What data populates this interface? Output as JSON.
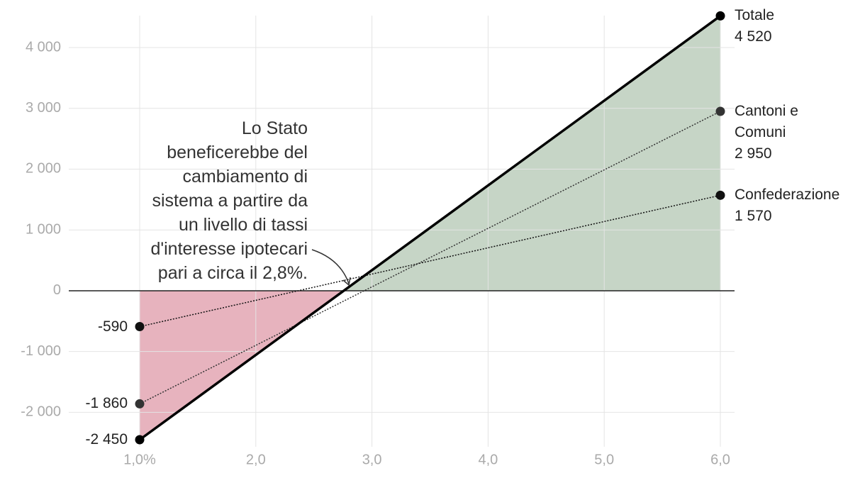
{
  "chart_data": {
    "type": "line",
    "x": [
      1,
      6
    ],
    "xlim": [
      1,
      6
    ],
    "xticks": [
      {
        "value": 1,
        "label": "1,0%"
      },
      {
        "value": 2,
        "label": "2,0"
      },
      {
        "value": 3,
        "label": "3,0"
      },
      {
        "value": 4,
        "label": "4,0"
      },
      {
        "value": 5,
        "label": "5,0"
      },
      {
        "value": 6,
        "label": "6,0"
      }
    ],
    "ylim": [
      -2450,
      4520
    ],
    "yticks": [
      {
        "value": -2000,
        "label": "-2 000"
      },
      {
        "value": -1000,
        "label": "-1 000"
      },
      0,
      {
        "value": 1000,
        "label": "1 000"
      },
      {
        "value": 2000,
        "label": "2 000"
      },
      {
        "value": 3000,
        "label": "3 000"
      },
      {
        "value": 4000,
        "label": "4 000"
      }
    ],
    "grid": true,
    "negative_fill": "#e7b3be",
    "positive_fill": "#c6d5c6",
    "series": [
      {
        "name": "Totale",
        "color": "#000000",
        "dashed": false,
        "values": [
          -2450,
          4520
        ],
        "value_labels": [
          "-2 450",
          "4 520"
        ]
      },
      {
        "name": "Cantoni e Comuni",
        "color": "#333333",
        "dashed": true,
        "values": [
          -1860,
          2950
        ],
        "value_labels": [
          "-1 860",
          "2 950"
        ]
      },
      {
        "name": "Confederazione",
        "color": "#111111",
        "dashed": true,
        "values": [
          -590,
          1570
        ],
        "value_labels": [
          "-590",
          "1 570"
        ]
      }
    ],
    "annotation": "Lo Stato beneficerebbe del cambiamento di sistema a partire da un livello di tassi d'interesse ipotecari pari a circa il 2,8%."
  }
}
